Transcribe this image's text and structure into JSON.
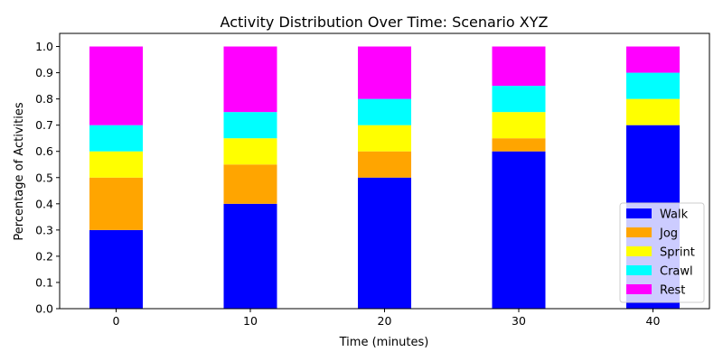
{
  "chart_data": {
    "type": "bar",
    "stacked": true,
    "title": "Activity Distribution Over Time: Scenario XYZ",
    "xlabel": "Time (minutes)",
    "ylabel": "Percentage of Activities",
    "categories": [
      "0",
      "10",
      "20",
      "30",
      "40"
    ],
    "ylim": [
      0,
      1.05
    ],
    "yticks": [
      "0.0",
      "0.1",
      "0.2",
      "0.3",
      "0.4",
      "0.5",
      "0.6",
      "0.7",
      "0.8",
      "0.9",
      "1.0"
    ],
    "grid": false,
    "legend_position": "lower-right",
    "series": [
      {
        "name": "Walk",
        "color": "#0000ff",
        "values": [
          0.3,
          0.4,
          0.5,
          0.6,
          0.7
        ]
      },
      {
        "name": "Jog",
        "color": "#ffa500",
        "values": [
          0.2,
          0.15,
          0.1,
          0.05,
          0.0
        ]
      },
      {
        "name": "Sprint",
        "color": "#ffff00",
        "values": [
          0.1,
          0.1,
          0.1,
          0.1,
          0.1
        ]
      },
      {
        "name": "Crawl",
        "color": "#00ffff",
        "values": [
          0.1,
          0.1,
          0.1,
          0.1,
          0.1
        ]
      },
      {
        "name": "Rest",
        "color": "#ff00ff",
        "values": [
          0.3,
          0.25,
          0.2,
          0.15,
          0.1
        ]
      }
    ]
  }
}
